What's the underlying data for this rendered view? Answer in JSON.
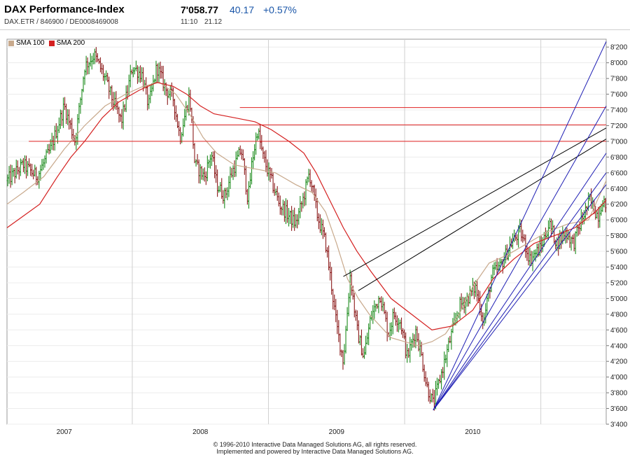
{
  "header": {
    "title": "DAX Performance-Index",
    "subtitle": "DAX.ETR  /  846900  /  DE0008469008",
    "price": "7'058.77",
    "change": "40.17",
    "change_pct": "+0.57%",
    "time": "11:10",
    "date": "21.12"
  },
  "legend": [
    {
      "name": "SMA 100",
      "color": "#c8a98c"
    },
    {
      "name": "SMA 200",
      "color": "#d42020"
    }
  ],
  "colors": {
    "up": "#1e8c1e",
    "down": "#8b1a1a",
    "sma100": "#c8a98c",
    "sma200": "#d42020",
    "support": "#e02020",
    "trend_black": "#000000",
    "trend_blue": "#1f1fb4"
  },
  "footer": {
    "line1": "© 1996-2010 Interactive Data Managed Solutions AG, all rights reserved.",
    "line2": "Implemented and powered by Interactive Data Managed Solutions AG."
  },
  "chart_data": {
    "type": "ohlc",
    "title": "DAX Performance-Index",
    "xlabel": "",
    "ylabel": "",
    "x_range": [
      2006.58,
      2010.98
    ],
    "ylim": [
      3400,
      8300
    ],
    "y_ticks": [
      3400,
      3600,
      3800,
      4000,
      4200,
      4400,
      4600,
      4800,
      5000,
      5200,
      5400,
      5600,
      5800,
      6000,
      6200,
      6400,
      6600,
      6800,
      7000,
      7200,
      7400,
      7600,
      7800,
      8000,
      8200
    ],
    "y_tick_labels": [
      "3'400",
      "3'600",
      "3'800",
      "4'000",
      "4'200",
      "4'400",
      "4'600",
      "4'800",
      "5'000",
      "5'200",
      "5'400",
      "5'600",
      "5'800",
      "6'000",
      "6'200",
      "6'400",
      "6'600",
      "6'800",
      "7'000",
      "7'200",
      "7'400",
      "7'600",
      "7'800",
      "8'000",
      "8'200"
    ],
    "x_ticks": [
      {
        "label": "2007",
        "x": 2007.0
      },
      {
        "label": "2008",
        "x": 2008.0
      },
      {
        "label": "2009",
        "x": 2009.0
      },
      {
        "label": "2010",
        "x": 2010.0
      }
    ],
    "year_dividers": [
      2007.5,
      2008.5,
      2009.5,
      2010.5
    ],
    "grid": true,
    "legend_position": "top-left",
    "price_path": [
      [
        2006.58,
        6500
      ],
      [
        2006.7,
        6700
      ],
      [
        2006.8,
        6550
      ],
      [
        2006.9,
        6900
      ],
      [
        2007.0,
        7450
      ],
      [
        2007.08,
        7000
      ],
      [
        2007.15,
        7950
      ],
      [
        2007.22,
        8100
      ],
      [
        2007.3,
        7800
      ],
      [
        2007.35,
        7550
      ],
      [
        2007.42,
        7250
      ],
      [
        2007.5,
        7950
      ],
      [
        2007.57,
        7850
      ],
      [
        2007.62,
        7450
      ],
      [
        2007.68,
        7950
      ],
      [
        2007.75,
        7650
      ],
      [
        2007.8,
        7550
      ],
      [
        2007.85,
        7050
      ],
      [
        2007.92,
        7600
      ],
      [
        2007.96,
        6700
      ],
      [
        2008.03,
        6550
      ],
      [
        2008.08,
        6850
      ],
      [
        2008.12,
        6450
      ],
      [
        2008.18,
        6300
      ],
      [
        2008.22,
        6550
      ],
      [
        2008.3,
        6900
      ],
      [
        2008.35,
        6250
      ],
      [
        2008.38,
        6750
      ],
      [
        2008.42,
        7150
      ],
      [
        2008.46,
        6800
      ],
      [
        2008.52,
        6500
      ],
      [
        2008.58,
        6200
      ],
      [
        2008.65,
        6050
      ],
      [
        2008.7,
        5950
      ],
      [
        2008.76,
        6300
      ],
      [
        2008.8,
        6600
      ],
      [
        2008.86,
        6050
      ],
      [
        2008.92,
        5700
      ],
      [
        2008.96,
        5200
      ],
      [
        2009.0,
        4650
      ],
      [
        2009.05,
        4200
      ],
      [
        2009.1,
        5300
      ],
      [
        2009.15,
        4600
      ],
      [
        2009.2,
        4250
      ],
      [
        2009.25,
        4750
      ],
      [
        2009.32,
        5050
      ],
      [
        2009.38,
        4550
      ],
      [
        2009.42,
        4800
      ],
      [
        2009.47,
        4700
      ],
      [
        2009.52,
        4250
      ],
      [
        2009.58,
        4600
      ],
      [
        2009.62,
        4300
      ],
      [
        2009.66,
        3900
      ],
      [
        2009.71,
        3650
      ],
      [
        2009.77,
        4050
      ],
      [
        2009.83,
        4450
      ],
      [
        2009.9,
        4900
      ],
      [
        2009.96,
        5000
      ],
      [
        2010.02,
        5150
      ],
      [
        2010.08,
        4700
      ],
      [
        2010.14,
        5300
      ],
      [
        2010.2,
        5400
      ],
      [
        2010.28,
        5700
      ],
      [
        2010.35,
        5850
      ],
      [
        2010.42,
        5500
      ],
      [
        2010.5,
        5650
      ],
      [
        2010.56,
        5950
      ],
      [
        2010.62,
        5700
      ],
      [
        2010.68,
        5850
      ],
      [
        2010.74,
        5700
      ],
      [
        2010.8,
        6000
      ],
      [
        2010.86,
        6250
      ],
      [
        2010.92,
        6050
      ],
      [
        2010.96,
        6300
      ],
      [
        2010.98,
        6000
      ]
    ],
    "sma100": [
      [
        2006.58,
        6200
      ],
      [
        2006.7,
        6350
      ],
      [
        2006.85,
        6550
      ],
      [
        2007.0,
        6900
      ],
      [
        2007.15,
        7200
      ],
      [
        2007.3,
        7450
      ],
      [
        2007.45,
        7600
      ],
      [
        2007.58,
        7700
      ],
      [
        2007.7,
        7750
      ],
      [
        2007.82,
        7600
      ],
      [
        2007.92,
        7350
      ],
      [
        2008.02,
        7050
      ],
      [
        2008.12,
        6850
      ],
      [
        2008.25,
        6700
      ],
      [
        2008.4,
        6650
      ],
      [
        2008.55,
        6600
      ],
      [
        2008.7,
        6450
      ],
      [
        2008.82,
        6350
      ],
      [
        2008.92,
        6100
      ],
      [
        2009.0,
        5700
      ],
      [
        2009.08,
        5250
      ],
      [
        2009.16,
        5000
      ],
      [
        2009.24,
        4800
      ],
      [
        2009.32,
        4650
      ],
      [
        2009.4,
        4500
      ],
      [
        2009.5,
        4450
      ],
      [
        2009.6,
        4400
      ],
      [
        2009.7,
        4450
      ],
      [
        2009.8,
        4550
      ],
      [
        2009.9,
        4800
      ],
      [
        2010.0,
        5150
      ],
      [
        2010.12,
        5450
      ],
      [
        2010.25,
        5550
      ],
      [
        2010.4,
        5700
      ],
      [
        2010.55,
        5850
      ],
      [
        2010.7,
        5950
      ],
      [
        2010.85,
        6000
      ],
      [
        2010.98,
        6500
      ]
    ],
    "sma200": [
      [
        2006.58,
        5900
      ],
      [
        2006.7,
        6050
      ],
      [
        2006.82,
        6200
      ],
      [
        2006.95,
        6550
      ],
      [
        2007.05,
        6800
      ],
      [
        2007.15,
        7000
      ],
      [
        2007.28,
        7300
      ],
      [
        2007.4,
        7500
      ],
      [
        2007.55,
        7650
      ],
      [
        2007.68,
        7750
      ],
      [
        2007.8,
        7700
      ],
      [
        2007.9,
        7600
      ],
      [
        2008.0,
        7450
      ],
      [
        2008.1,
        7350
      ],
      [
        2008.25,
        7300
      ],
      [
        2008.4,
        7250
      ],
      [
        2008.52,
        7150
      ],
      [
        2008.65,
        7000
      ],
      [
        2008.76,
        6850
      ],
      [
        2008.85,
        6600
      ],
      [
        2008.95,
        6250
      ],
      [
        2009.05,
        5900
      ],
      [
        2009.15,
        5600
      ],
      [
        2009.25,
        5350
      ],
      [
        2009.4,
        5000
      ],
      [
        2009.55,
        4800
      ],
      [
        2009.7,
        4600
      ],
      [
        2009.85,
        4650
      ],
      [
        2010.0,
        4850
      ],
      [
        2010.15,
        5250
      ],
      [
        2010.3,
        5500
      ],
      [
        2010.45,
        5700
      ],
      [
        2010.6,
        5800
      ],
      [
        2010.75,
        5900
      ],
      [
        2010.9,
        6100
      ],
      [
        2010.98,
        6250
      ]
    ],
    "support_lines": [
      {
        "x1": 2006.74,
        "x2": 2010.98,
        "y": 7000
      },
      {
        "x1": 2007.92,
        "x2": 2010.98,
        "y": 7210
      },
      {
        "x1": 2008.29,
        "x2": 2010.98,
        "y": 7430
      }
    ],
    "trend_lines_black": [
      {
        "x1": 2009.05,
        "y1": 5280,
        "x2": 2010.98,
        "y2": 7170
      },
      {
        "x1": 2009.16,
        "y1": 5100,
        "x2": 2010.98,
        "y2": 7030
      }
    ],
    "trend_lines_blue": [
      {
        "x1": 2009.71,
        "y1": 3580,
        "x2": 2010.98,
        "y2": 8270
      },
      {
        "x1": 2009.71,
        "y1": 3580,
        "x2": 2010.98,
        "y2": 7450
      },
      {
        "x1": 2009.71,
        "y1": 3580,
        "x2": 2010.98,
        "y2": 6850
      },
      {
        "x1": 2009.71,
        "y1": 3580,
        "x2": 2010.98,
        "y2": 6600
      },
      {
        "x1": 2009.71,
        "y1": 3580,
        "x2": 2010.98,
        "y2": 6450
      }
    ]
  }
}
